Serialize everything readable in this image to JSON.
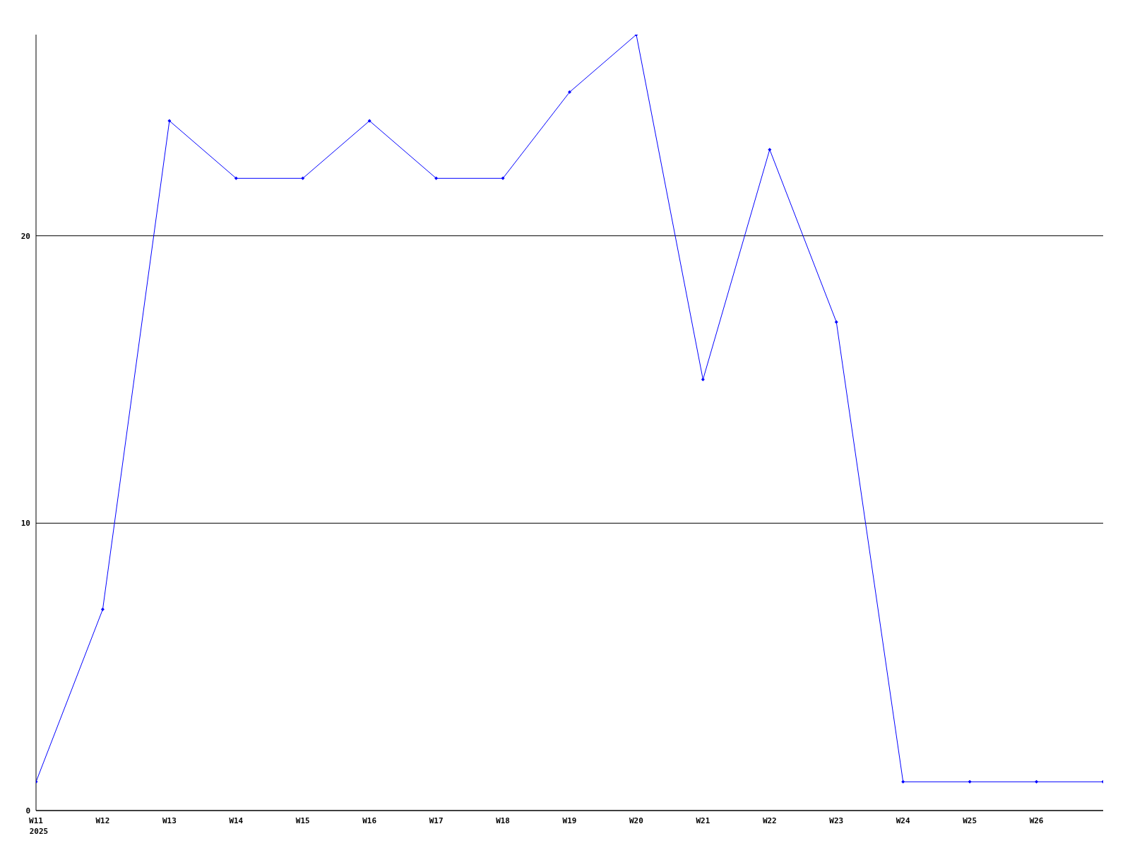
{
  "chart_data": {
    "type": "line",
    "categories": [
      "W11",
      "W12",
      "W13",
      "W14",
      "W15",
      "W16",
      "W17",
      "W18",
      "W19",
      "W20",
      "W21",
      "W22",
      "W23",
      "W24",
      "W25",
      "W26",
      null
    ],
    "series": [
      {
        "color": "#0000ff",
        "values": [
          1,
          7,
          24,
          22,
          22,
          24,
          22,
          22,
          25,
          27,
          15,
          23,
          17,
          1,
          1,
          1,
          1
        ]
      }
    ],
    "ylim": [
      0,
      27
    ],
    "yticks": [
      0,
      10,
      20
    ],
    "grid": "y",
    "marker": "diamond",
    "line_style": "solid",
    "annotations": [
      "2025"
    ]
  }
}
